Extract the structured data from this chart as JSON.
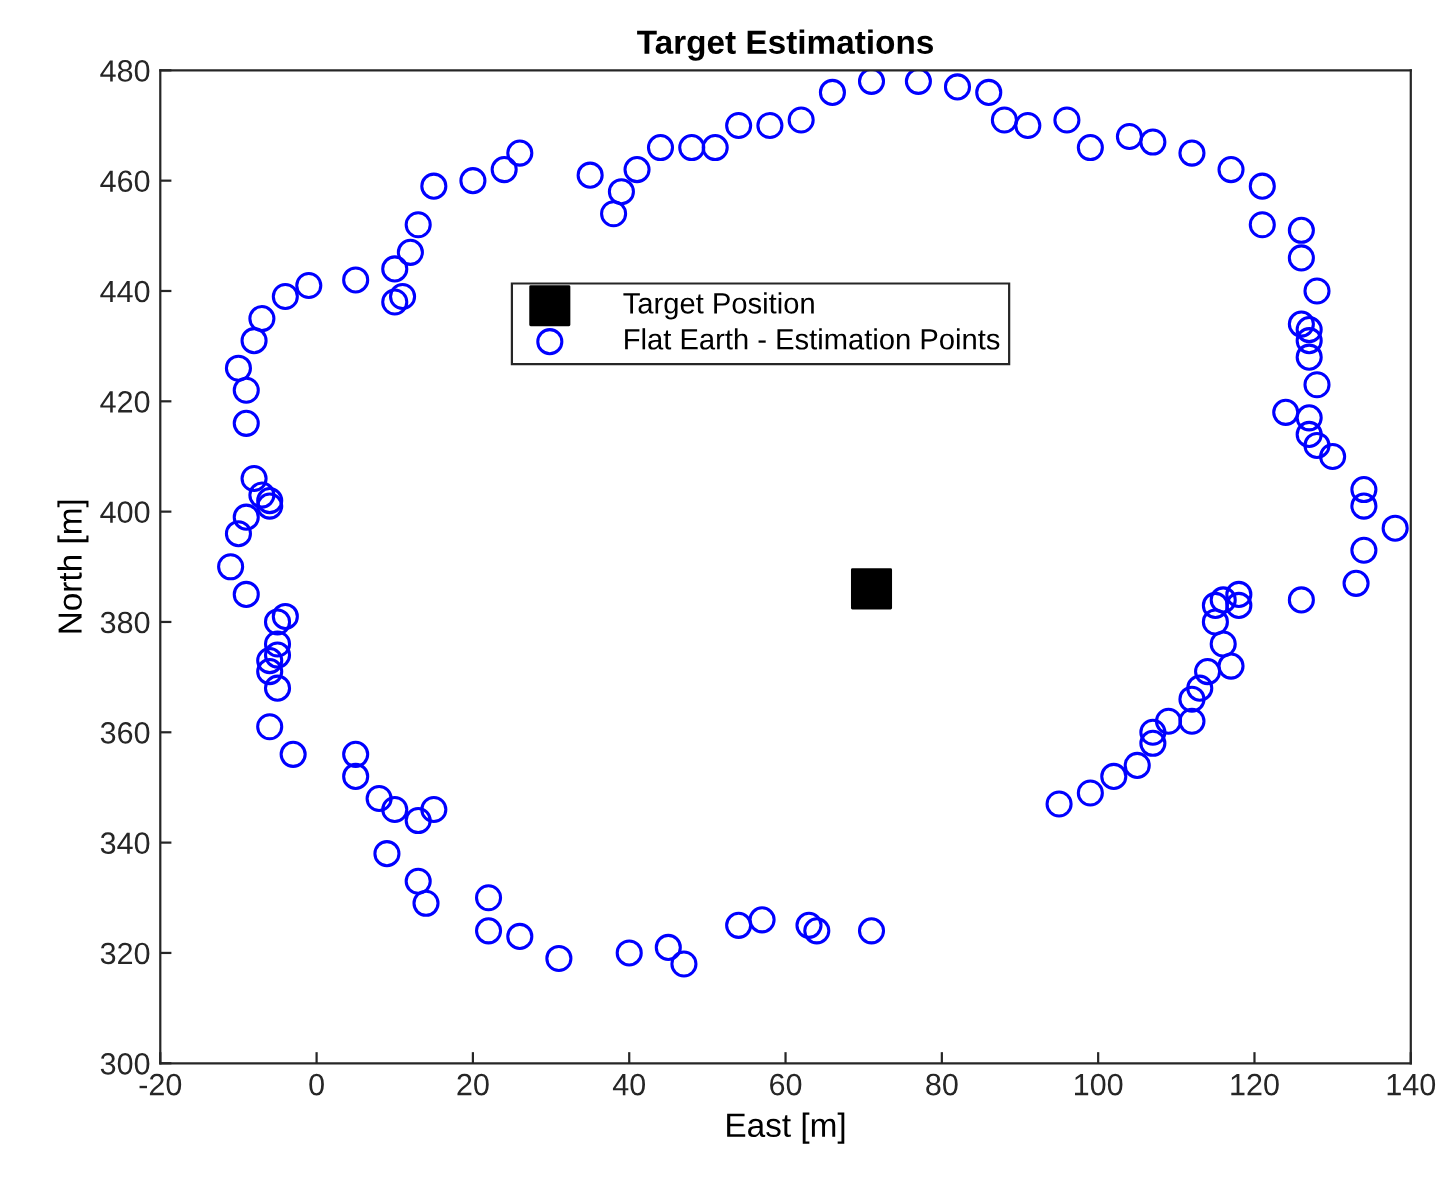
{
  "chart_data": {
    "type": "scatter",
    "title": "Target Estimations",
    "xlabel": "East [m]",
    "ylabel": "North [m]",
    "xlim": [
      -20,
      140
    ],
    "xticks": [
      -20,
      0,
      20,
      40,
      60,
      80,
      100,
      120,
      140
    ],
    "ylim": [
      300,
      480
    ],
    "yticks": [
      300,
      320,
      340,
      360,
      380,
      400,
      420,
      440,
      460,
      480
    ],
    "grid": false,
    "legend": "top",
    "series": [
      {
        "name": "Target Position",
        "color": "#000000",
        "marker": "square",
        "x": [
          71
        ],
        "values": [
          386
        ]
      },
      {
        "name": "Flat Earth - Estimation Points",
        "color": "#0000ff",
        "marker": "circle",
        "x": [
          -11,
          -10,
          -9,
          -8,
          -7,
          -6,
          -6,
          -9,
          -9,
          -10,
          -8,
          -7,
          -4,
          -1,
          5,
          10,
          10,
          11,
          12,
          13,
          15,
          20,
          24,
          26,
          35,
          38,
          39,
          41,
          44,
          48,
          51,
          54,
          58,
          62,
          66,
          71,
          77,
          82,
          86,
          88,
          91,
          96,
          99,
          104,
          107,
          112,
          117,
          121,
          121,
          126,
          126,
          128,
          126,
          127,
          127,
          127,
          128,
          124,
          127,
          127,
          128,
          130,
          134,
          134,
          134,
          138,
          133,
          126,
          115,
          116,
          118,
          118,
          115,
          116,
          117,
          114,
          113,
          112,
          112,
          109,
          107,
          107,
          105,
          102,
          99,
          95,
          -9,
          -4,
          -5,
          -5,
          -5,
          -6,
          -6,
          -5,
          -6,
          -3,
          5,
          5,
          8,
          10,
          13,
          15,
          9,
          13,
          14,
          22,
          22,
          26,
          31,
          40,
          45,
          47,
          54,
          57,
          63,
          64,
          71
        ],
        "values": [
          390,
          396,
          399,
          406,
          403,
          401,
          402,
          416,
          422,
          426,
          431,
          435,
          439,
          441,
          442,
          444,
          438,
          439,
          447,
          452,
          459,
          460,
          462,
          465,
          461,
          454,
          458,
          462,
          466,
          466,
          466,
          470,
          470,
          471,
          476,
          478,
          478,
          477,
          476,
          471,
          470,
          471,
          466,
          468,
          467,
          465,
          462,
          459,
          452,
          451,
          446,
          440,
          434,
          433,
          431,
          428,
          423,
          418,
          417,
          414,
          412,
          410,
          404,
          401,
          393,
          397,
          387,
          384,
          383,
          384,
          385,
          383,
          380,
          376,
          372,
          371,
          368,
          366,
          362,
          362,
          360,
          358,
          354,
          352,
          349,
          347,
          385,
          381,
          380,
          376,
          374,
          373,
          371,
          368,
          361,
          356,
          356,
          352,
          348,
          346,
          344,
          346,
          338,
          333,
          329,
          330,
          324,
          323,
          319,
          320,
          321,
          318,
          325,
          326,
          325,
          324,
          324
        ]
      }
    ]
  }
}
